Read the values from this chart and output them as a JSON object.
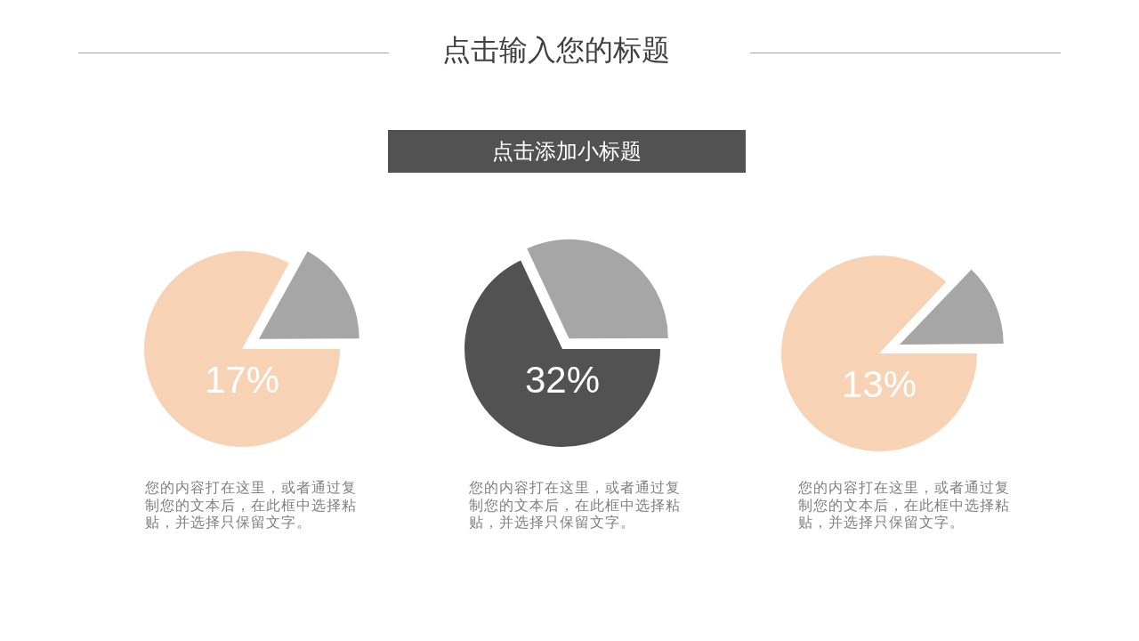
{
  "chart_data": [
    {
      "type": "other",
      "title": "点击输入您的标题",
      "subtitle": "点击添加小标题"
    },
    {
      "type": "pie",
      "categories": [
        null,
        null
      ],
      "values": [
        83,
        17
      ],
      "colors": [
        "#f8d2b4",
        "#a6a6a6"
      ],
      "annotations": [
        "17%",
        "您的内容打在这里，或者通过复制您的文本后，在此框中选择粘贴，并选择只保留文字。"
      ]
    },
    {
      "type": "pie",
      "categories": [
        null,
        null
      ],
      "values": [
        68,
        32
      ],
      "colors": [
        "#525252",
        "#a6a6a6"
      ],
      "annotations": [
        "32%",
        "您的内容打在这里，或者通过复制您的文本后，在此框中选择粘贴，并选择只保留文字。"
      ]
    },
    {
      "type": "pie",
      "categories": [
        null,
        null
      ],
      "values": [
        87,
        13
      ],
      "colors": [
        "#f8d2b4",
        "#a6a6a6"
      ],
      "annotations": [
        "13%",
        "您的内容打在这里，或者通过复制您的文本后，在此框中选择粘贴，并选择只保留文字。"
      ]
    }
  ]
}
